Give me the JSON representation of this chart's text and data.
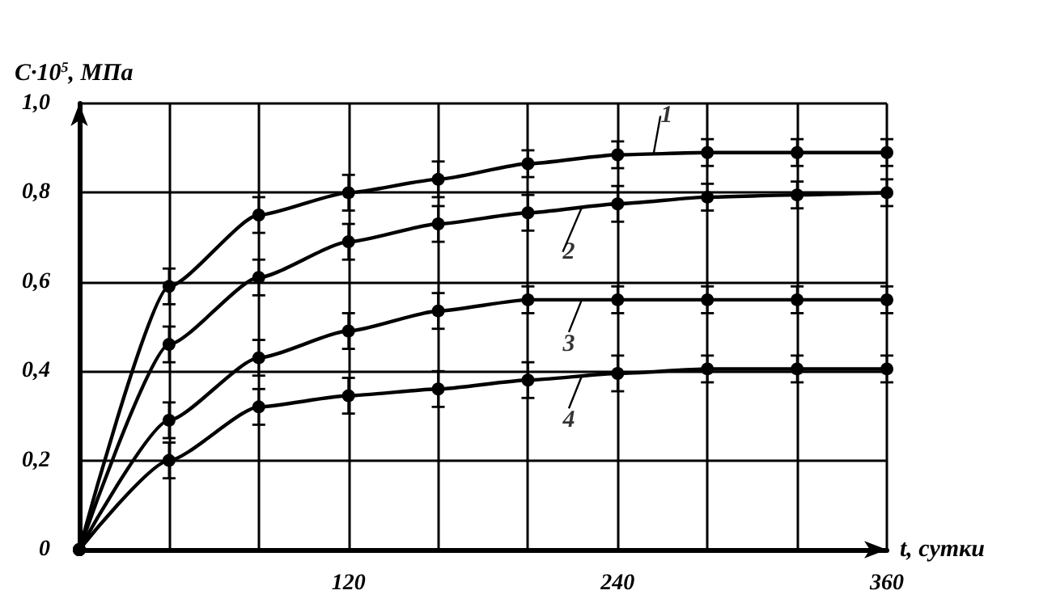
{
  "chart_data": {
    "type": "line",
    "xlabel": "t, сутки",
    "ylabel": "C·10$^{5}$, МПа",
    "x": [
      0,
      40,
      80,
      120,
      160,
      200,
      240,
      280,
      320,
      360
    ],
    "series": [
      {
        "name": "1",
        "color": "#000000",
        "values": [
          0,
          0.59,
          0.75,
          0.8,
          0.83,
          0.865,
          0.885,
          0.89,
          0.89,
          0.89
        ],
        "errors": [
          null,
          0.04,
          0.04,
          0.04,
          0.04,
          0.03,
          0.03,
          0.03,
          0.03,
          0.03
        ]
      },
      {
        "name": "2",
        "color": "#000000",
        "values": [
          0,
          0.46,
          0.61,
          0.69,
          0.73,
          0.755,
          0.775,
          0.79,
          0.795,
          0.8
        ],
        "errors": [
          null,
          0.04,
          0.04,
          0.04,
          0.04,
          0.04,
          0.04,
          0.03,
          0.03,
          0.03
        ]
      },
      {
        "name": "3",
        "color": "#000000",
        "values": [
          0,
          0.29,
          0.43,
          0.49,
          0.535,
          0.56,
          0.56,
          0.56,
          0.56,
          0.56
        ],
        "errors": [
          null,
          0.04,
          0.04,
          0.04,
          0.04,
          0.03,
          0.03,
          0.03,
          0.03,
          0.03
        ]
      },
      {
        "name": "4",
        "color": "#000000",
        "values": [
          0,
          0.2,
          0.32,
          0.345,
          0.36,
          0.38,
          0.395,
          0.405,
          0.405,
          0.405
        ],
        "errors": [
          null,
          0.04,
          0.04,
          0.04,
          0.04,
          0.04,
          0.04,
          0.03,
          0.03,
          0.03
        ]
      }
    ],
    "xlim": [
      0,
      360
    ],
    "ylim": [
      0,
      1.0
    ],
    "xticks": [
      {
        "value": 40,
        "label": null
      },
      {
        "value": 80,
        "label": null
      },
      120,
      {
        "value": 160,
        "label": null
      },
      {
        "value": 200,
        "label": null
      },
      240,
      {
        "value": 280,
        "label": null
      },
      {
        "value": 320,
        "label": null
      },
      360
    ],
    "yticks": [
      0,
      {
        "value": 0.2,
        "label": "0,2"
      },
      {
        "value": 0.4,
        "label": "0,4"
      },
      {
        "value": 0.6,
        "label": "0,6"
      },
      {
        "value": 0.8,
        "label": "0,8"
      },
      {
        "value": 1.0,
        "label": "1,0"
      }
    ],
    "grid": true,
    "legend": "right",
    "marker": "circle",
    "line_style": "solid"
  }
}
